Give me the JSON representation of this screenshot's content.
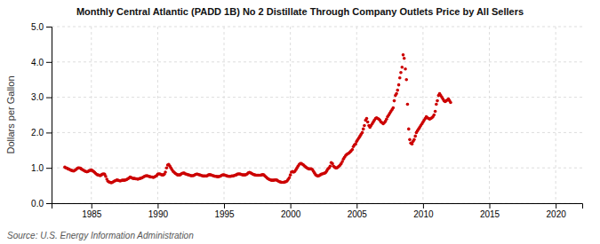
{
  "chart_data": {
    "type": "scatter",
    "title": "Monthly Central Atlantic (PADD 1B) No 2 Distillate Through Company Outlets Price by All Sellers",
    "ylabel": "Dollars per Gallon",
    "annotations": [
      "Source: U.S. Energy Information Administration"
    ],
    "color": "#cc0000",
    "grid": true,
    "xlim": [
      1982,
      2022
    ],
    "ylim": [
      0.0,
      5.0
    ],
    "xticks": [
      1985,
      1990,
      1995,
      2000,
      2005,
      2010,
      2015,
      2020
    ],
    "yticks": [
      {
        "value": 0.0,
        "label": "0.0"
      },
      {
        "value": 1.0,
        "label": "1.0"
      },
      {
        "value": 2.0,
        "label": "2.0"
      },
      {
        "value": 3.0,
        "label": "3.0"
      },
      {
        "value": 4.0,
        "label": "4.0"
      },
      {
        "value": 5.0,
        "label": "5.0"
      }
    ],
    "x": [
      1983.0,
      1983.08,
      1983.17,
      1983.25,
      1983.33,
      1983.42,
      1983.5,
      1983.58,
      1983.67,
      1983.75,
      1983.83,
      1983.92,
      1984.0,
      1984.08,
      1984.17,
      1984.25,
      1984.33,
      1984.42,
      1984.5,
      1984.58,
      1984.67,
      1984.75,
      1984.83,
      1984.92,
      1985.0,
      1985.08,
      1985.17,
      1985.25,
      1985.33,
      1985.42,
      1985.5,
      1985.58,
      1985.67,
      1985.75,
      1985.83,
      1985.92,
      1986.0,
      1986.08,
      1986.17,
      1986.25,
      1986.33,
      1986.42,
      1986.5,
      1986.58,
      1986.67,
      1986.75,
      1986.83,
      1986.92,
      1987.0,
      1987.08,
      1987.17,
      1987.25,
      1987.33,
      1987.42,
      1987.5,
      1987.58,
      1987.67,
      1987.75,
      1987.83,
      1987.92,
      1988.0,
      1988.08,
      1988.17,
      1988.25,
      1988.33,
      1988.42,
      1988.5,
      1988.58,
      1988.67,
      1988.75,
      1988.83,
      1988.92,
      1989.0,
      1989.08,
      1989.17,
      1989.25,
      1989.33,
      1989.42,
      1989.5,
      1989.58,
      1989.67,
      1989.75,
      1989.83,
      1989.92,
      1990.0,
      1990.08,
      1990.17,
      1990.25,
      1990.33,
      1990.42,
      1990.5,
      1990.58,
      1990.67,
      1990.75,
      1990.83,
      1990.92,
      1991.0,
      1991.08,
      1991.17,
      1991.25,
      1991.33,
      1991.42,
      1991.5,
      1991.58,
      1991.67,
      1991.75,
      1991.83,
      1991.92,
      1992.0,
      1992.08,
      1992.17,
      1992.25,
      1992.33,
      1992.42,
      1992.5,
      1992.58,
      1992.67,
      1992.75,
      1992.83,
      1992.92,
      1993.0,
      1993.08,
      1993.17,
      1993.25,
      1993.33,
      1993.42,
      1993.5,
      1993.58,
      1993.67,
      1993.75,
      1993.83,
      1993.92,
      1994.0,
      1994.08,
      1994.17,
      1994.25,
      1994.33,
      1994.42,
      1994.5,
      1994.58,
      1994.67,
      1994.75,
      1994.83,
      1994.92,
      1995.0,
      1995.08,
      1995.17,
      1995.25,
      1995.33,
      1995.42,
      1995.5,
      1995.58,
      1995.67,
      1995.75,
      1995.83,
      1995.92,
      1996.0,
      1996.08,
      1996.17,
      1996.25,
      1996.33,
      1996.42,
      1996.5,
      1996.58,
      1996.67,
      1996.75,
      1996.83,
      1996.92,
      1997.0,
      1997.08,
      1997.17,
      1997.25,
      1997.33,
      1997.42,
      1997.5,
      1997.58,
      1997.67,
      1997.75,
      1997.83,
      1997.92,
      1998.0,
      1998.08,
      1998.17,
      1998.25,
      1998.33,
      1998.42,
      1998.5,
      1998.58,
      1998.67,
      1998.75,
      1998.83,
      1998.92,
      1999.0,
      1999.08,
      1999.17,
      1999.25,
      1999.33,
      1999.42,
      1999.5,
      1999.58,
      1999.67,
      1999.75,
      1999.83,
      1999.92,
      2000.0,
      2000.08,
      2000.17,
      2000.25,
      2000.33,
      2000.42,
      2000.5,
      2000.58,
      2000.67,
      2000.75,
      2000.83,
      2000.92,
      2001.0,
      2001.08,
      2001.17,
      2001.25,
      2001.33,
      2001.42,
      2001.5,
      2001.58,
      2001.67,
      2001.75,
      2001.83,
      2001.92,
      2002.0,
      2002.08,
      2002.17,
      2002.25,
      2002.33,
      2002.42,
      2002.5,
      2002.58,
      2002.67,
      2002.75,
      2002.83,
      2002.92,
      2003.0,
      2003.08,
      2003.17,
      2003.25,
      2003.33,
      2003.42,
      2003.5,
      2003.58,
      2003.67,
      2003.75,
      2003.83,
      2003.92,
      2004.0,
      2004.08,
      2004.17,
      2004.25,
      2004.33,
      2004.42,
      2004.5,
      2004.58,
      2004.67,
      2004.75,
      2004.83,
      2004.92,
      2005.0,
      2005.08,
      2005.17,
      2005.25,
      2005.33,
      2005.42,
      2005.5,
      2005.58,
      2005.67,
      2005.75,
      2005.83,
      2005.92,
      2006.0,
      2006.08,
      2006.17,
      2006.25,
      2006.33,
      2006.42,
      2006.5,
      2006.58,
      2006.67,
      2006.75,
      2006.83,
      2006.92,
      2007.0,
      2007.08,
      2007.17,
      2007.25,
      2007.33,
      2007.42,
      2007.5,
      2007.58,
      2007.67,
      2007.75,
      2007.83,
      2007.92,
      2008.0,
      2008.08,
      2008.17,
      2008.25,
      2008.33,
      2008.42,
      2008.5,
      2008.58,
      2008.67,
      2008.75,
      2008.83,
      2008.92,
      2009.0,
      2009.08,
      2009.17,
      2009.25,
      2009.33,
      2009.42,
      2009.5,
      2009.58,
      2009.67,
      2009.75,
      2009.83,
      2009.92,
      2010.0,
      2010.08,
      2010.17,
      2010.25,
      2010.33,
      2010.42,
      2010.5,
      2010.58,
      2010.67,
      2010.75,
      2010.83,
      2010.92,
      2011.0,
      2011.08,
      2011.17,
      2011.25,
      2011.33,
      2011.42,
      2011.5,
      2011.58,
      2011.67,
      2011.75,
      2011.83,
      2011.92,
      2012.0,
      2012.08
    ],
    "values": [
      1.02,
      1.0,
      0.99,
      0.97,
      0.96,
      0.94,
      0.93,
      0.92,
      0.91,
      0.93,
      0.95,
      0.98,
      1.0,
      1.0,
      0.99,
      0.97,
      0.95,
      0.93,
      0.91,
      0.9,
      0.89,
      0.9,
      0.92,
      0.93,
      0.94,
      0.92,
      0.9,
      0.87,
      0.84,
      0.81,
      0.8,
      0.79,
      0.78,
      0.8,
      0.82,
      0.83,
      0.82,
      0.76,
      0.68,
      0.62,
      0.6,
      0.59,
      0.58,
      0.59,
      0.61,
      0.63,
      0.64,
      0.66,
      0.65,
      0.64,
      0.63,
      0.64,
      0.65,
      0.65,
      0.65,
      0.66,
      0.67,
      0.69,
      0.71,
      0.74,
      0.73,
      0.71,
      0.7,
      0.7,
      0.69,
      0.69,
      0.68,
      0.69,
      0.7,
      0.71,
      0.72,
      0.74,
      0.76,
      0.77,
      0.78,
      0.77,
      0.76,
      0.75,
      0.74,
      0.74,
      0.73,
      0.74,
      0.76,
      0.78,
      0.82,
      0.83,
      0.83,
      0.81,
      0.8,
      0.8,
      0.82,
      0.88,
      1.0,
      1.08,
      1.1,
      1.05,
      1.0,
      0.95,
      0.9,
      0.87,
      0.84,
      0.82,
      0.8,
      0.8,
      0.8,
      0.82,
      0.84,
      0.85,
      0.85,
      0.83,
      0.82,
      0.81,
      0.8,
      0.79,
      0.78,
      0.78,
      0.78,
      0.79,
      0.81,
      0.82,
      0.82,
      0.81,
      0.8,
      0.79,
      0.78,
      0.77,
      0.77,
      0.77,
      0.77,
      0.78,
      0.8,
      0.81,
      0.8,
      0.79,
      0.78,
      0.77,
      0.76,
      0.76,
      0.75,
      0.75,
      0.76,
      0.77,
      0.79,
      0.8,
      0.8,
      0.79,
      0.78,
      0.77,
      0.76,
      0.76,
      0.76,
      0.77,
      0.77,
      0.78,
      0.79,
      0.8,
      0.82,
      0.83,
      0.83,
      0.82,
      0.81,
      0.8,
      0.8,
      0.8,
      0.81,
      0.83,
      0.86,
      0.87,
      0.86,
      0.84,
      0.82,
      0.81,
      0.8,
      0.79,
      0.79,
      0.79,
      0.79,
      0.79,
      0.8,
      0.81,
      0.8,
      0.77,
      0.74,
      0.71,
      0.69,
      0.67,
      0.66,
      0.65,
      0.65,
      0.65,
      0.66,
      0.66,
      0.65,
      0.63,
      0.61,
      0.6,
      0.59,
      0.59,
      0.59,
      0.6,
      0.61,
      0.63,
      0.67,
      0.72,
      0.8,
      0.88,
      0.9,
      0.88,
      0.9,
      0.95,
      1.0,
      1.05,
      1.1,
      1.12,
      1.12,
      1.1,
      1.08,
      1.05,
      1.02,
      1.0,
      0.98,
      0.97,
      0.97,
      0.97,
      0.95,
      0.9,
      0.85,
      0.8,
      0.78,
      0.77,
      0.78,
      0.8,
      0.82,
      0.83,
      0.84,
      0.85,
      0.87,
      0.92,
      0.97,
      1.0,
      1.05,
      1.15,
      1.12,
      1.05,
      1.02,
      1.0,
      1.0,
      1.02,
      1.05,
      1.08,
      1.12,
      1.18,
      1.25,
      1.3,
      1.35,
      1.38,
      1.4,
      1.42,
      1.45,
      1.48,
      1.52,
      1.6,
      1.65,
      1.68,
      1.75,
      1.8,
      1.85,
      1.9,
      1.95,
      2.0,
      2.1,
      2.2,
      2.35,
      2.4,
      2.3,
      2.2,
      2.15,
      2.2,
      2.25,
      2.3,
      2.35,
      2.4,
      2.42,
      2.4,
      2.38,
      2.35,
      2.3,
      2.28,
      2.25,
      2.28,
      2.32,
      2.38,
      2.45,
      2.5,
      2.55,
      2.6,
      2.65,
      2.7,
      2.9,
      3.05,
      3.1,
      3.2,
      3.35,
      3.55,
      3.7,
      3.85,
      4.2,
      4.1,
      3.8,
      3.5,
      2.8,
      2.1,
      1.8,
      1.7,
      1.68,
      1.75,
      1.8,
      1.9,
      2.0,
      2.05,
      2.1,
      2.15,
      2.2,
      2.25,
      2.3,
      2.35,
      2.4,
      2.45,
      2.42,
      2.4,
      2.38,
      2.4,
      2.42,
      2.45,
      2.5,
      2.6,
      2.8,
      2.9,
      3.05,
      3.1,
      3.05,
      3.0,
      2.95,
      2.9,
      2.88,
      2.9,
      2.92,
      2.95,
      2.9,
      2.85
    ]
  }
}
